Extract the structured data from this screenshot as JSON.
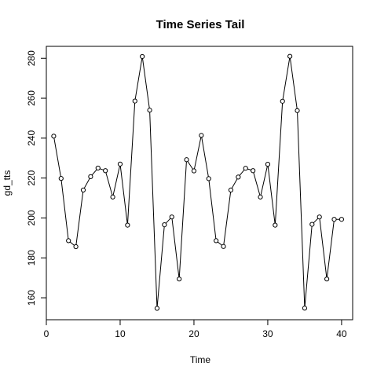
{
  "chart_data": {
    "type": "line",
    "title": "Time Series Tail",
    "xlabel": "Time",
    "ylabel": "gd_tts",
    "xlim": [
      0,
      41.5
    ],
    "ylim": [
      149,
      286
    ],
    "x_ticks": [
      0,
      10,
      20,
      30,
      40
    ],
    "y_ticks": [
      160,
      180,
      200,
      220,
      240,
      260,
      280
    ],
    "x_tick_labels": [
      "0",
      "10",
      "20",
      "30",
      "40"
    ],
    "y_tick_labels": [
      "160",
      "180",
      "200",
      "220",
      "240",
      "260",
      "280"
    ],
    "grid": false,
    "markers": "open-circle",
    "line_color": "#000000",
    "series": [
      {
        "x": [
          1,
          2,
          3,
          4,
          5,
          6,
          7,
          8,
          9,
          10,
          11,
          12,
          13,
          14,
          15,
          16,
          17,
          18,
          19,
          20,
          21,
          22,
          23,
          24,
          25,
          26,
          27,
          28,
          29,
          30,
          31,
          32,
          33,
          34,
          35,
          36,
          37,
          38,
          39,
          40
        ],
        "values": [
          241,
          219.8,
          188.6,
          185.6,
          214,
          220.7,
          225,
          223.7,
          210.5,
          227,
          196.4,
          258.6,
          280.9,
          254,
          154.7,
          196.6,
          200.5,
          169.4,
          229.2,
          223.6,
          241.4,
          219.7,
          188.6,
          185.7,
          214,
          220.5,
          224.9,
          223.7,
          210.5,
          226.9,
          196.4,
          258.5,
          281,
          253.8,
          154.8,
          196.8,
          200.5,
          169.4,
          199.3,
          199.3
        ]
      }
    ]
  }
}
